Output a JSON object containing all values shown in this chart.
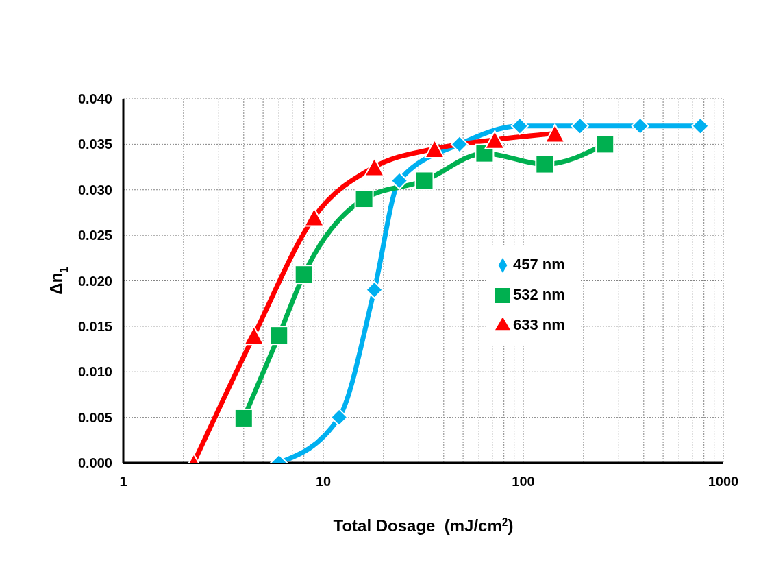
{
  "chart_data": {
    "type": "line",
    "xlabel": "Total Dosage  (mJ/cm$^{2}$)",
    "ylabel": "Δn$_{1}$",
    "series": [
      {
        "name": "457 nm",
        "color": "#00b0f0",
        "marker": "diamond",
        "x": [
          6,
          12,
          18,
          24,
          48,
          96,
          192,
          384,
          768
        ],
        "values": [
          0,
          0.005,
          0.019,
          0.031,
          0.035,
          0.037,
          0.037,
          0.037,
          0.037
        ]
      },
      {
        "name": "532 nm",
        "color": "#00b050",
        "marker": "square",
        "x": [
          4,
          6,
          8,
          16,
          32,
          64,
          128,
          256
        ],
        "values": [
          0.0049,
          0.014,
          0.0207,
          0.029,
          0.031,
          0.034,
          0.0328,
          0.035
        ]
      },
      {
        "name": "633 nm",
        "color": "#ff0000",
        "marker": "triangle",
        "x": [
          2.25,
          4.5,
          9,
          18,
          36,
          72,
          144
        ],
        "values": [
          0,
          0.014,
          0.027,
          0.0325,
          0.0345,
          0.0355,
          0.0362
        ]
      }
    ],
    "log": "x",
    "xlim": [
      1,
      1000
    ],
    "xticks": [
      1,
      {
        "value": 2,
        "label": null
      },
      {
        "value": 3,
        "label": null
      },
      {
        "value": 4,
        "label": null
      },
      {
        "value": 5,
        "label": null
      },
      {
        "value": 6,
        "label": null
      },
      {
        "value": 7,
        "label": null
      },
      {
        "value": 8,
        "label": null
      },
      {
        "value": 9,
        "label": null
      },
      10,
      {
        "value": 20,
        "label": null
      },
      {
        "value": 30,
        "label": null
      },
      {
        "value": 40,
        "label": null
      },
      {
        "value": 50,
        "label": null
      },
      {
        "value": 60,
        "label": null
      },
      {
        "value": 70,
        "label": null
      },
      {
        "value": 80,
        "label": null
      },
      {
        "value": 90,
        "label": null
      },
      100,
      {
        "value": 200,
        "label": null
      },
      {
        "value": 300,
        "label": null
      },
      {
        "value": 400,
        "label": null
      },
      {
        "value": 500,
        "label": null
      },
      {
        "value": 600,
        "label": null
      },
      {
        "value": 700,
        "label": null
      },
      {
        "value": 800,
        "label": null
      },
      {
        "value": 900,
        "label": null
      },
      1000
    ],
    "ylim": [
      0,
      0.04
    ],
    "yticks": [
      {
        "value": 0,
        "label": "0.000"
      },
      {
        "value": 0.005,
        "label": "0.005"
      },
      {
        "value": 0.01,
        "label": "0.010"
      },
      {
        "value": 0.015,
        "label": "0.015"
      },
      {
        "value": 0.02,
        "label": "0.020"
      },
      {
        "value": 0.025,
        "label": "0.025"
      },
      {
        "value": 0.03,
        "label": "0.030"
      },
      {
        "value": 0.035,
        "label": "0.035"
      },
      {
        "value": 0.04,
        "label": "0.040"
      }
    ],
    "grid": true,
    "legend": "right",
    "line_style": "solid"
  }
}
